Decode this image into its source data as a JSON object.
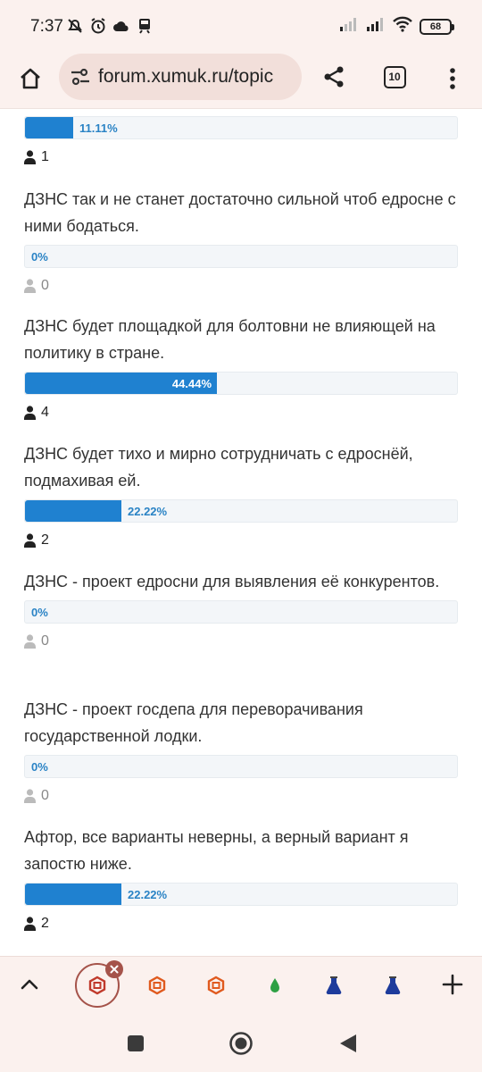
{
  "status_bar": {
    "time": "7:37",
    "battery": "68",
    "icons_left": [
      "muted-alarm-icon",
      "alarm-clock-icon",
      "cloud-icon",
      "train-icon"
    ],
    "icons_right": [
      "signal-weak-icon",
      "signal-icon",
      "wifi-icon",
      "battery-icon"
    ]
  },
  "browser": {
    "url": "forum.xumuk.ru/topic",
    "tab_count": "10"
  },
  "poll": {
    "items": [
      {
        "question": "",
        "percent_label": "11.11%",
        "fraction": 0.1111,
        "votes": "1"
      },
      {
        "question": "ДЗНС так и не станет достаточно сильной чтоб едросне с ними бодаться.",
        "percent_label": "0%",
        "fraction": 0,
        "votes": "0"
      },
      {
        "question": "ДЗНС будет площадкой для болтовни не влияющей на политику в стране.",
        "percent_label": "44.44%",
        "fraction": 0.4444,
        "votes": "4"
      },
      {
        "question": "ДЗНС будет тихо и мирно сотрудничать с едроснёй, подмахивая ей.",
        "percent_label": "22.22%",
        "fraction": 0.2222,
        "votes": "2"
      },
      {
        "question": "ДЗНС - проект едросни для выявления её конкурентов.",
        "percent_label": "0%",
        "fraction": 0,
        "votes": "0"
      },
      {
        "question": "ДЗНС - проект госдепа для переворачивания государственной лодки.",
        "percent_label": "0%",
        "fraction": 0,
        "votes": "0"
      },
      {
        "question": "Афтор, все варианты неверны, а верный вариант я запостю ниже.",
        "percent_label": "22.22%",
        "fraction": 0.2222,
        "votes": "2"
      }
    ]
  },
  "tab_strip": {
    "tabs": [
      {
        "icon": "hexagon-logo-icon",
        "color": "#c0392b",
        "active": true
      },
      {
        "icon": "hexagon-logo-icon",
        "color": "#e05a1e",
        "active": false
      },
      {
        "icon": "hexagon-logo-icon",
        "color": "#e05a1e",
        "active": false
      },
      {
        "icon": "green-drop-icon",
        "color": "#2ea043",
        "active": false
      },
      {
        "icon": "flask-icon",
        "color": "#1d3b9c",
        "active": false
      },
      {
        "icon": "flask-icon",
        "color": "#1d3b9c",
        "active": false
      }
    ]
  },
  "colors": {
    "bar_fill": "#1f81d0",
    "bar_track": "#f3f6f9",
    "chrome_bg": "#fbf1ee",
    "omnibox_bg": "#f2dfda",
    "active_tab_ring": "#a5534a"
  }
}
